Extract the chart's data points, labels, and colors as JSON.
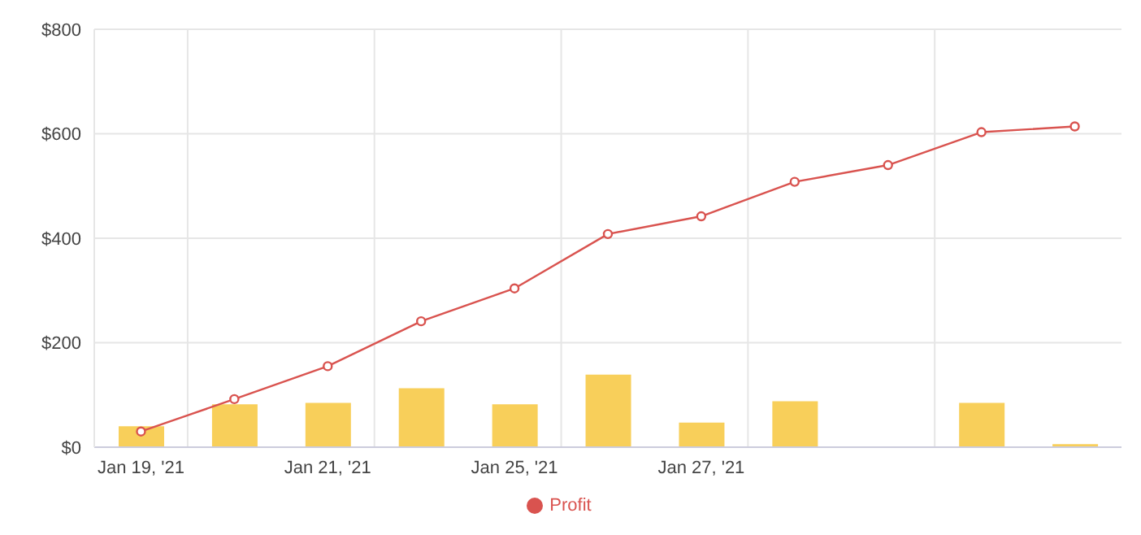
{
  "chart_data": {
    "type": "bar",
    "categories": [
      "Jan 19, '21",
      null,
      "Jan 21, '21",
      null,
      "Jan 25, '21",
      null,
      "Jan 27, '21",
      null,
      null,
      null,
      null
    ],
    "series": [
      {
        "color": "#f8cf5a",
        "values": [
          40,
          82,
          85,
          113,
          82,
          139,
          47,
          88,
          null,
          85,
          6
        ]
      },
      {
        "type": "line",
        "name": "Profit",
        "color": "#d9534f",
        "values": [
          30,
          92,
          155,
          241,
          304,
          408,
          442,
          508,
          540,
          603,
          614
        ]
      }
    ],
    "ylim": [
      0,
      800
    ],
    "yticks": [
      {
        "value": 0,
        "label": "$0"
      },
      {
        "value": 200,
        "label": "$200"
      },
      {
        "value": 400,
        "label": "$400"
      },
      {
        "value": 600,
        "label": "$600"
      },
      {
        "value": 800,
        "label": "$800"
      }
    ],
    "grid": true,
    "legend": "bottom",
    "marker": "circle",
    "line_style": "solid"
  }
}
